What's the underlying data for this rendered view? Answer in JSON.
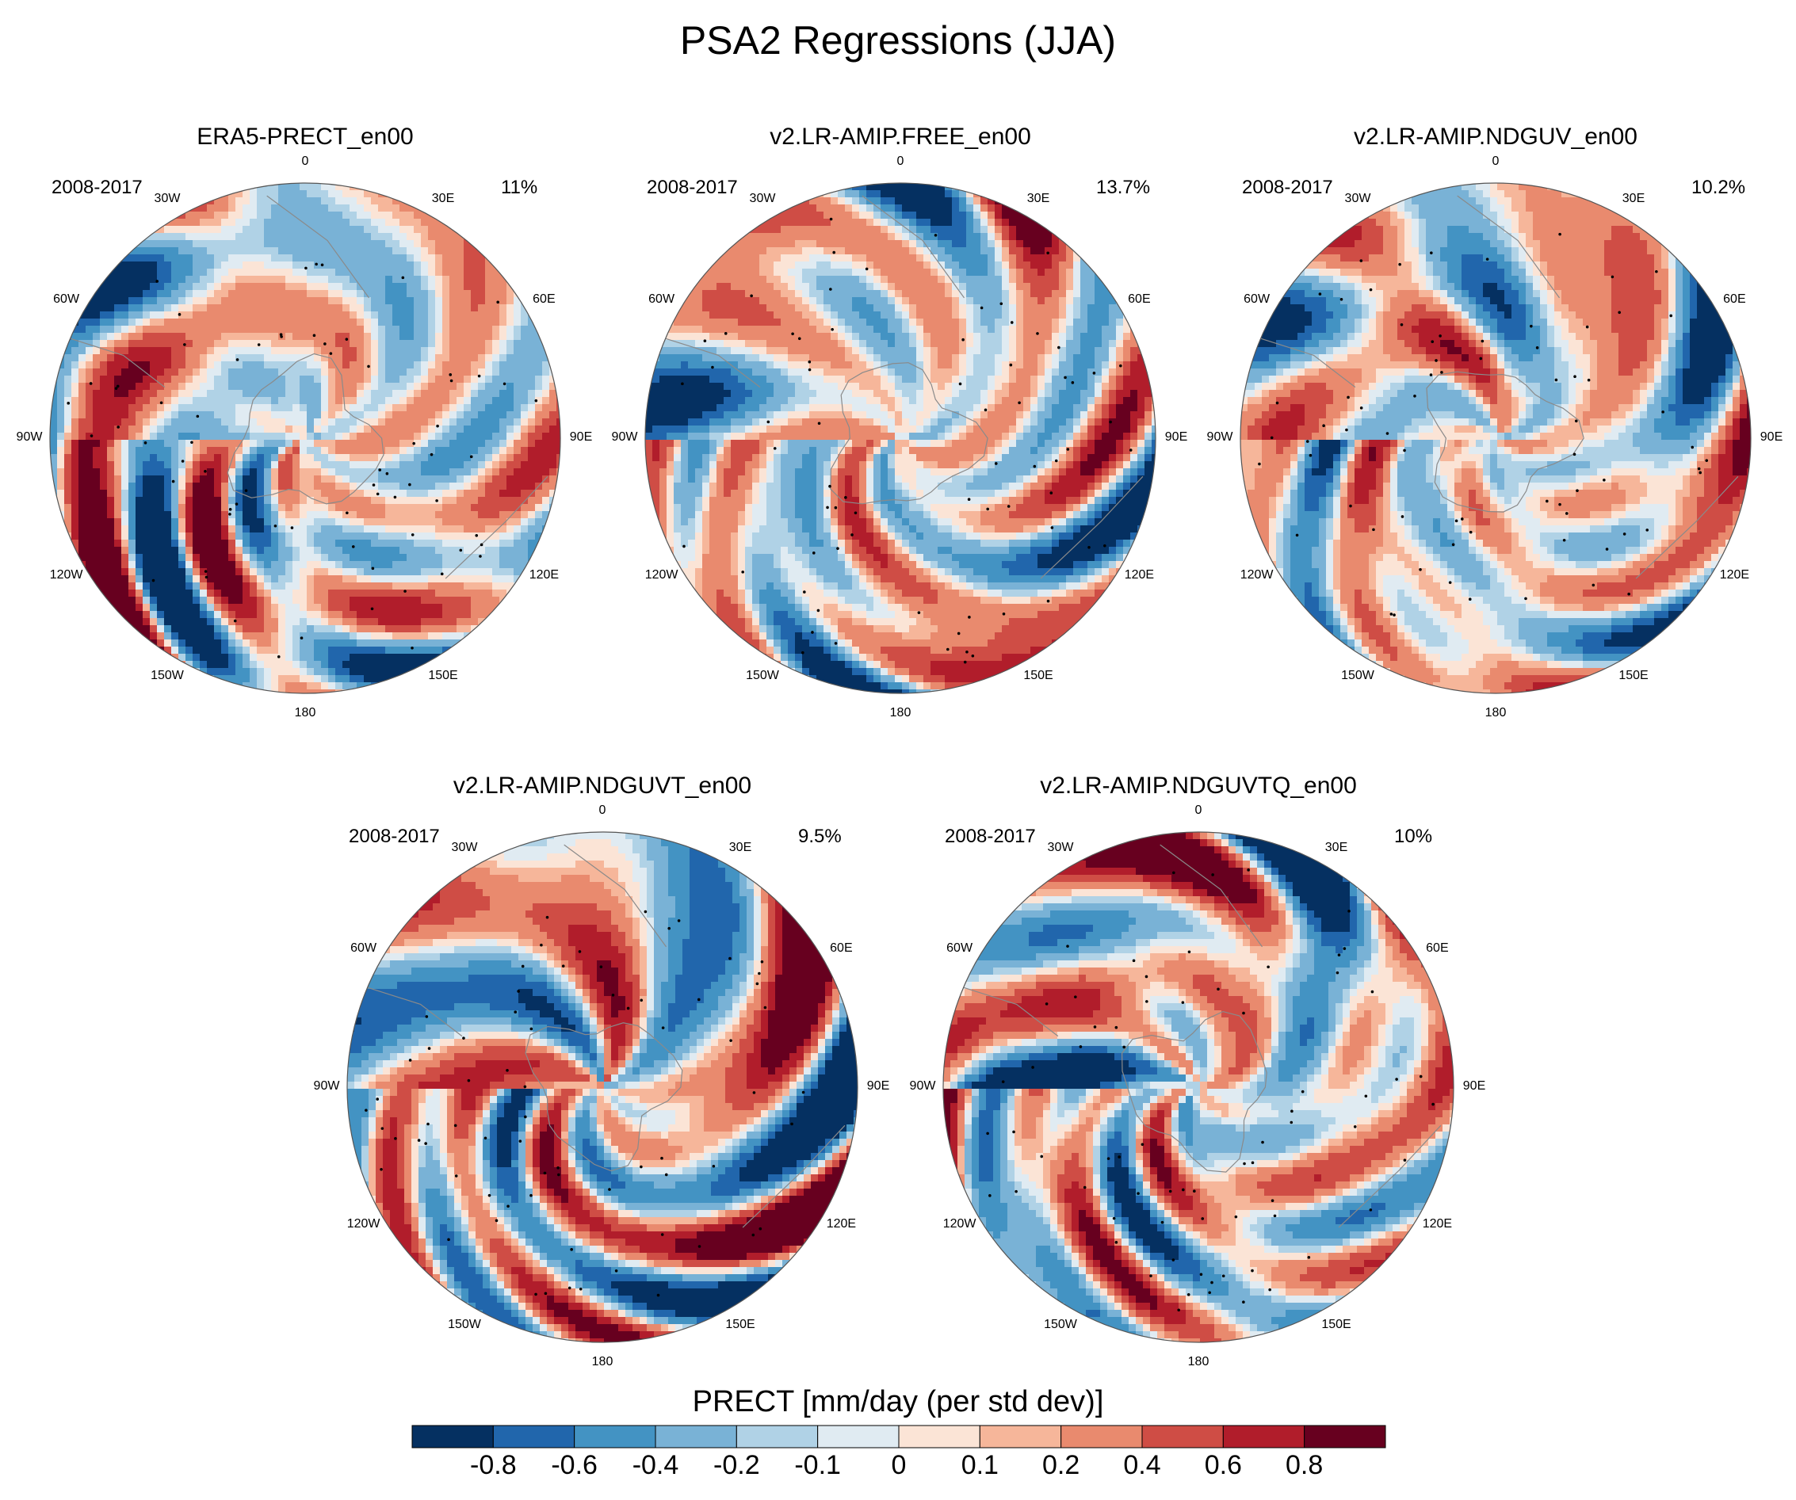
{
  "title": "PSA2 Regressions (JJA)",
  "colorbar": {
    "label": "PRECT [mm/day (per std dev)]",
    "colors": [
      "#053061",
      "#2166ac",
      "#4393c3",
      "#79b2d6",
      "#b0d2e6",
      "#e0ebf2",
      "#fbe4d6",
      "#f6b69a",
      "#e98a6e",
      "#cf4d45",
      "#b11d2b",
      "#67001f"
    ],
    "ticks": [
      "-0.8",
      "-0.6",
      "-0.4",
      "-0.2",
      "-0.1",
      "0",
      "0.1",
      "0.2",
      "0.4",
      "0.6",
      "0.8"
    ]
  },
  "longitude_labels": [
    "0",
    "30E",
    "60E",
    "90E",
    "120E",
    "150E",
    "180",
    "150W",
    "120W",
    "90W",
    "60W",
    "30W"
  ],
  "panels": [
    {
      "title": "ERA5-PRECT_en00",
      "period": "2008-2017",
      "variance": "11%"
    },
    {
      "title": "v2.LR-AMIP.FREE_en00",
      "period": "2008-2017",
      "variance": "13.7%"
    },
    {
      "title": "v2.LR-AMIP.NDGUV_en00",
      "period": "2008-2017",
      "variance": "10.2%"
    },
    {
      "title": "v2.LR-AMIP.NDGUVT_en00",
      "period": "2008-2017",
      "variance": "9.5%"
    },
    {
      "title": "v2.LR-AMIP.NDGUVTQ_en00",
      "period": "2008-2017",
      "variance": "10%"
    }
  ]
}
